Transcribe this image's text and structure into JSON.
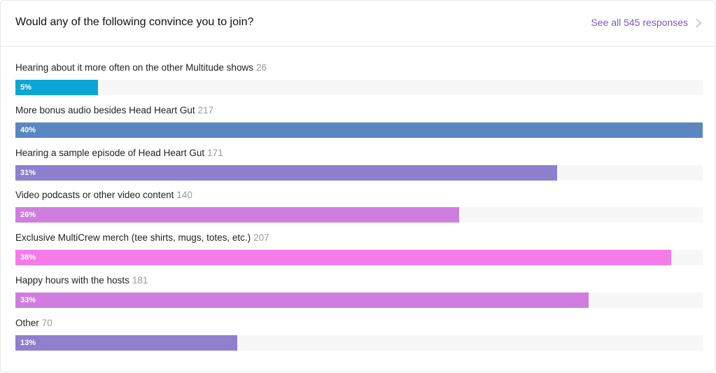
{
  "header": {
    "title": "Would any of the following convince you to join?",
    "link": "See all 545 responses"
  },
  "options": [
    {
      "label": "Hearing about it more often on the other Multitude shows",
      "count": 26,
      "percent_label": "5%",
      "color": "#0aa6d6"
    },
    {
      "label": "More bonus audio besides Head Heart Gut",
      "count": 217,
      "percent_label": "40%",
      "color": "#5a87c0"
    },
    {
      "label": "Hearing a sample episode of Head Heart Gut",
      "count": 171,
      "percent_label": "31%",
      "color": "#8e80cf"
    },
    {
      "label": "Video podcasts or other video content",
      "count": 140,
      "percent_label": "26%",
      "color": "#cf7ddf"
    },
    {
      "label": "Exclusive MultiCrew merch (tee shirts, mugs, totes, etc.)",
      "count": 207,
      "percent_label": "38%",
      "color": "#f57be8"
    },
    {
      "label": "Happy hours with the hosts",
      "count": 181,
      "percent_label": "33%",
      "color": "#cf7ddf"
    },
    {
      "label": "Other",
      "count": 70,
      "percent_label": "13%",
      "color": "#8e80cf"
    }
  ]
}
